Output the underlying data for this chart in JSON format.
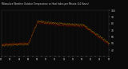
{
  "title": "Milwaukee Weather Outdoor Temperature vs Heat Index per Minute (24 Hours)",
  "bg_color": "#0a0a0a",
  "plot_bg_color": "#0a0a0a",
  "temp_color": "#dd0000",
  "heat_color": "#ffbb00",
  "grid_color": "#333333",
  "text_color": "#cccccc",
  "ylim": [
    30,
    100
  ],
  "xlim": [
    0,
    1440
  ],
  "yticks": [
    40,
    50,
    60,
    70,
    80,
    90,
    100
  ],
  "n_points": 1440,
  "figsize": [
    1.6,
    0.87
  ],
  "dpi": 100
}
